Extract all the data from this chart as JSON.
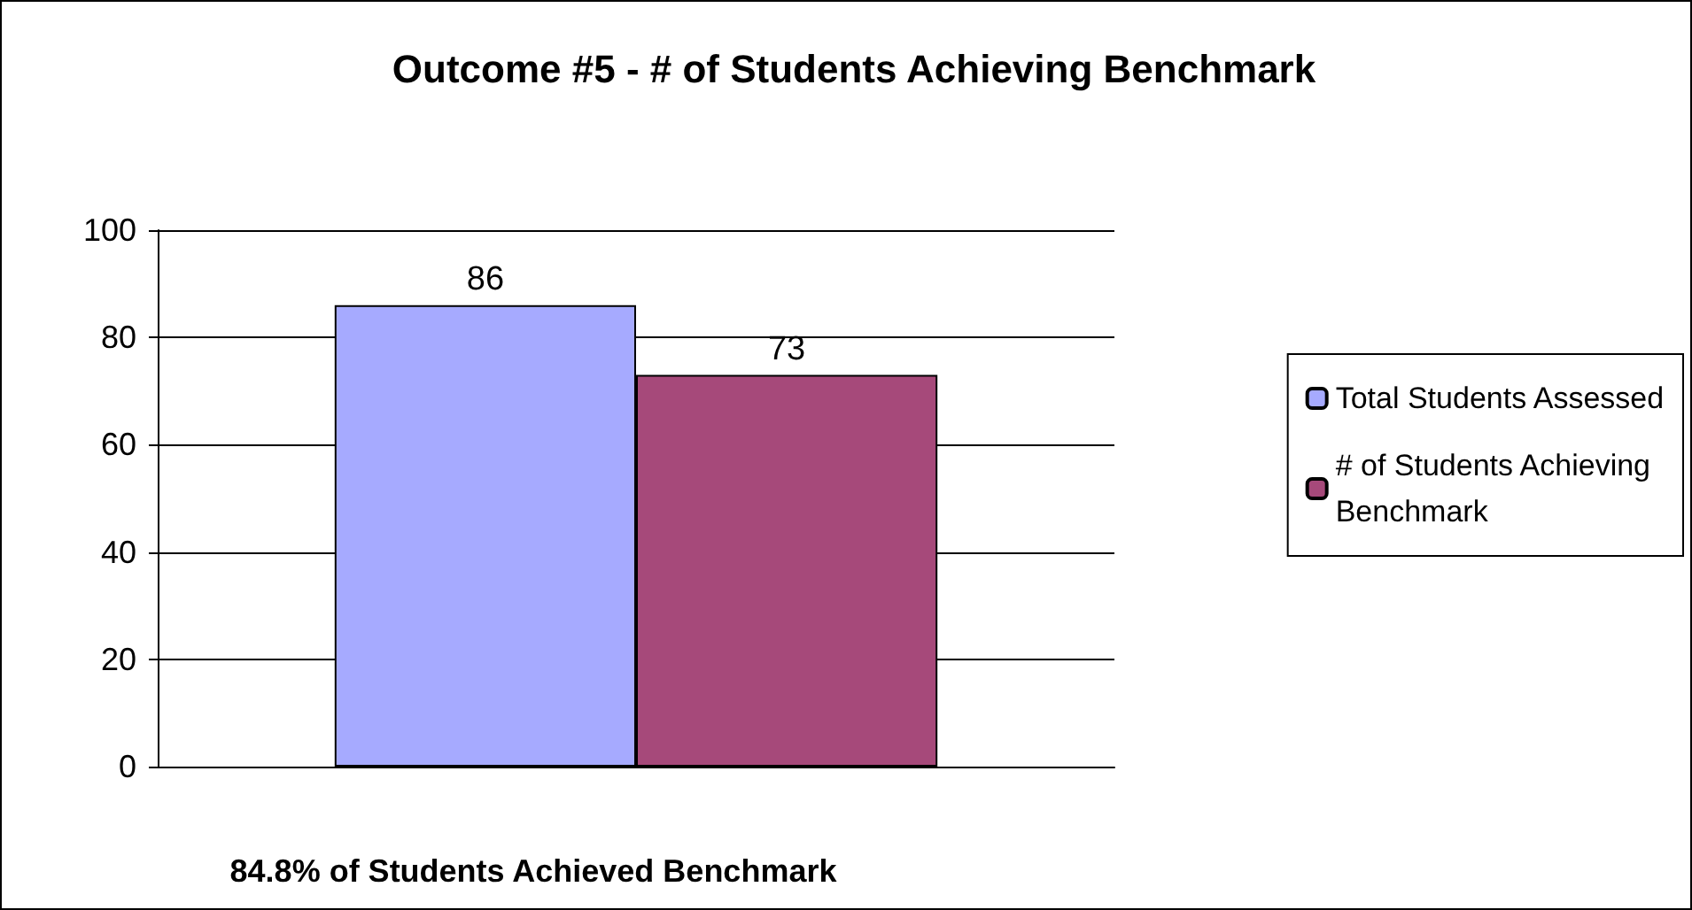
{
  "chart_data": {
    "type": "bar",
    "title": "Outcome #5 - # of Students Achieving Benchmark",
    "xlabel": "84.8% of Students Achieved Benchmark",
    "categories": [
      null
    ],
    "series": [
      {
        "name": "Total Students Assessed",
        "color": "#a6aaff",
        "values": [
          86
        ]
      },
      {
        "name": "# of Students Achieving Benchmark",
        "color": "#a6497a",
        "values": [
          73
        ]
      }
    ],
    "ylim": [
      0,
      100
    ],
    "yticks": [
      0,
      20,
      40,
      60,
      80,
      100
    ],
    "grid": "y",
    "legend": "right",
    "data_labels": true
  }
}
